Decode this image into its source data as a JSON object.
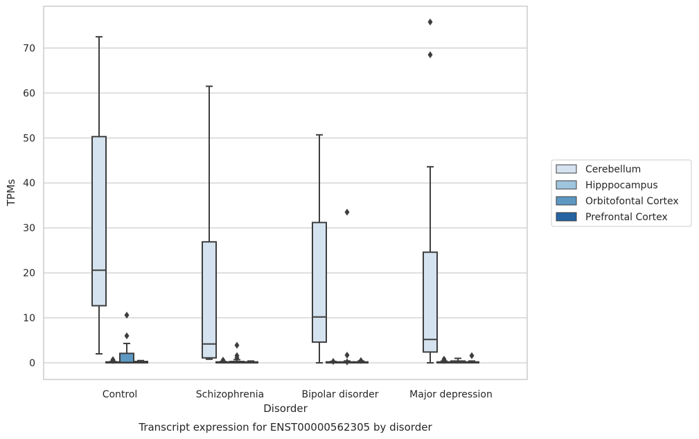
{
  "chart_data": {
    "type": "box",
    "caption": "Transcript expression for ENST00000562305 by disorder",
    "xlabel": "Disorder",
    "ylabel": "TPMs",
    "ylim": [
      -3.7,
      79.3
    ],
    "yticks": [
      0,
      10,
      20,
      30,
      40,
      50,
      60,
      70
    ],
    "grid": true,
    "legend_placement": "right",
    "categories": [
      "Control",
      "Schizophrenia",
      "Bipolar disorder",
      "Major depression"
    ],
    "series": [
      {
        "name": "Cerebellum",
        "color": "#d5e3f0",
        "boxes": [
          {
            "whisker_low": 2.0,
            "q1": 12.7,
            "median": 20.6,
            "q3": 50.3,
            "whisker_high": 72.5,
            "outliers": []
          },
          {
            "whisker_low": 0.8,
            "q1": 1.1,
            "median": 4.2,
            "q3": 26.9,
            "whisker_high": 61.5,
            "outliers": []
          },
          {
            "whisker_low": 0.0,
            "q1": 4.6,
            "median": 10.2,
            "q3": 31.2,
            "whisker_high": 50.7,
            "outliers": []
          },
          {
            "whisker_low": 0.0,
            "q1": 2.4,
            "median": 5.2,
            "q3": 24.6,
            "whisker_high": 43.6,
            "outliers": [
              68.5,
              75.8
            ]
          }
        ]
      },
      {
        "name": "Hipppocampus",
        "color": "#9fc4de",
        "boxes": [
          {
            "whisker_low": 0.0,
            "q1": 0.0,
            "median": 0.1,
            "q3": 0.2,
            "whisker_high": 0.3,
            "outliers": [
              0.5,
              0.7
            ]
          },
          {
            "whisker_low": 0.0,
            "q1": 0.0,
            "median": 0.1,
            "q3": 0.2,
            "whisker_high": 0.3,
            "outliers": [
              0.6
            ]
          },
          {
            "whisker_low": 0.0,
            "q1": 0.0,
            "median": 0.1,
            "q3": 0.2,
            "whisker_high": 0.3,
            "outliers": [
              0.3
            ]
          },
          {
            "whisker_low": 0.0,
            "q1": 0.0,
            "median": 0.1,
            "q3": 0.2,
            "whisker_high": 0.4,
            "outliers": [
              0.8,
              0.5
            ]
          }
        ]
      },
      {
        "name": "Orbitofontal Cortex",
        "color": "#5d98c3",
        "boxes": [
          {
            "whisker_low": 0.0,
            "q1": 0.0,
            "median": 0.1,
            "q3": 2.1,
            "whisker_high": 4.3,
            "outliers": [
              6.0,
              10.6
            ]
          },
          {
            "whisker_low": 0.0,
            "q1": 0.0,
            "median": 0.1,
            "q3": 0.3,
            "whisker_high": 0.7,
            "outliers": [
              1.1,
              1.6,
              3.9
            ]
          },
          {
            "whisker_low": 0.0,
            "q1": 0.0,
            "median": 0.1,
            "q3": 0.2,
            "whisker_high": 0.4,
            "outliers": [
              0.2,
              1.7,
              33.5
            ]
          },
          {
            "whisker_low": 0.0,
            "q1": 0.0,
            "median": 0.1,
            "q3": 0.4,
            "whisker_high": 1.0,
            "outliers": []
          }
        ]
      },
      {
        "name": "Prefrontal Cortex",
        "color": "#2563a2",
        "boxes": [
          {
            "whisker_low": 0.0,
            "q1": 0.0,
            "median": 0.1,
            "q3": 0.3,
            "whisker_high": 0.5,
            "outliers": []
          },
          {
            "whisker_low": 0.0,
            "q1": 0.0,
            "median": 0.1,
            "q3": 0.2,
            "whisker_high": 0.4,
            "outliers": []
          },
          {
            "whisker_low": 0.0,
            "q1": 0.0,
            "median": 0.1,
            "q3": 0.2,
            "whisker_high": 0.4,
            "outliers": [
              0.5
            ]
          },
          {
            "whisker_low": 0.0,
            "q1": 0.0,
            "median": 0.1,
            "q3": 0.2,
            "whisker_high": 0.4,
            "outliers": [
              1.6
            ]
          }
        ]
      }
    ]
  }
}
